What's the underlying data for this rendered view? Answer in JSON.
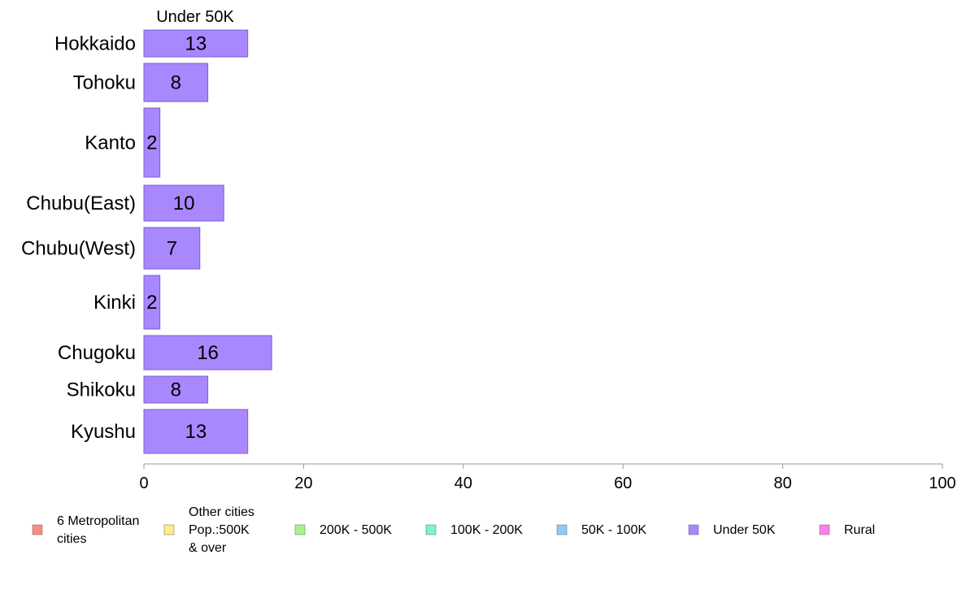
{
  "chart_data": {
    "type": "bar",
    "orientation": "horizontal",
    "title": "",
    "series_title": "Under 50K",
    "categories": [
      "Hokkaido",
      "Tohoku",
      "Kanto",
      "Chubu(East)",
      "Chubu(West)",
      "Kinki",
      "Chugoku",
      "Shikoku",
      "Kyushu"
    ],
    "series": [
      {
        "name": "Under 50K",
        "color": "#a987ff",
        "values": [
          13,
          8,
          2,
          10,
          7,
          2,
          16,
          8,
          13
        ]
      }
    ],
    "xlim": [
      0,
      100
    ],
    "xticks": [
      0,
      20,
      40,
      60,
      80,
      100
    ],
    "xlabel": "",
    "ylabel": "",
    "grid": false,
    "legend_position": "bottom",
    "legend": [
      {
        "lines": [
          "6 Metropolitan",
          " cities"
        ],
        "color": "#ff8a80"
      },
      {
        "lines": [
          "Other cities",
          "Pop.:500K",
          " & over"
        ],
        "color": "#ffee88"
      },
      {
        "lines": [
          "200K - 500K"
        ],
        "color": "#a6f58a"
      },
      {
        "lines": [
          "100K - 200K"
        ],
        "color": "#7df5c5"
      },
      {
        "lines": [
          "50K - 100K"
        ],
        "color": "#8ccaff"
      },
      {
        "lines": [
          "Under 50K"
        ],
        "color": "#a987ff"
      },
      {
        "lines": [
          "Rural"
        ],
        "color": "#ff80e8"
      }
    ]
  }
}
